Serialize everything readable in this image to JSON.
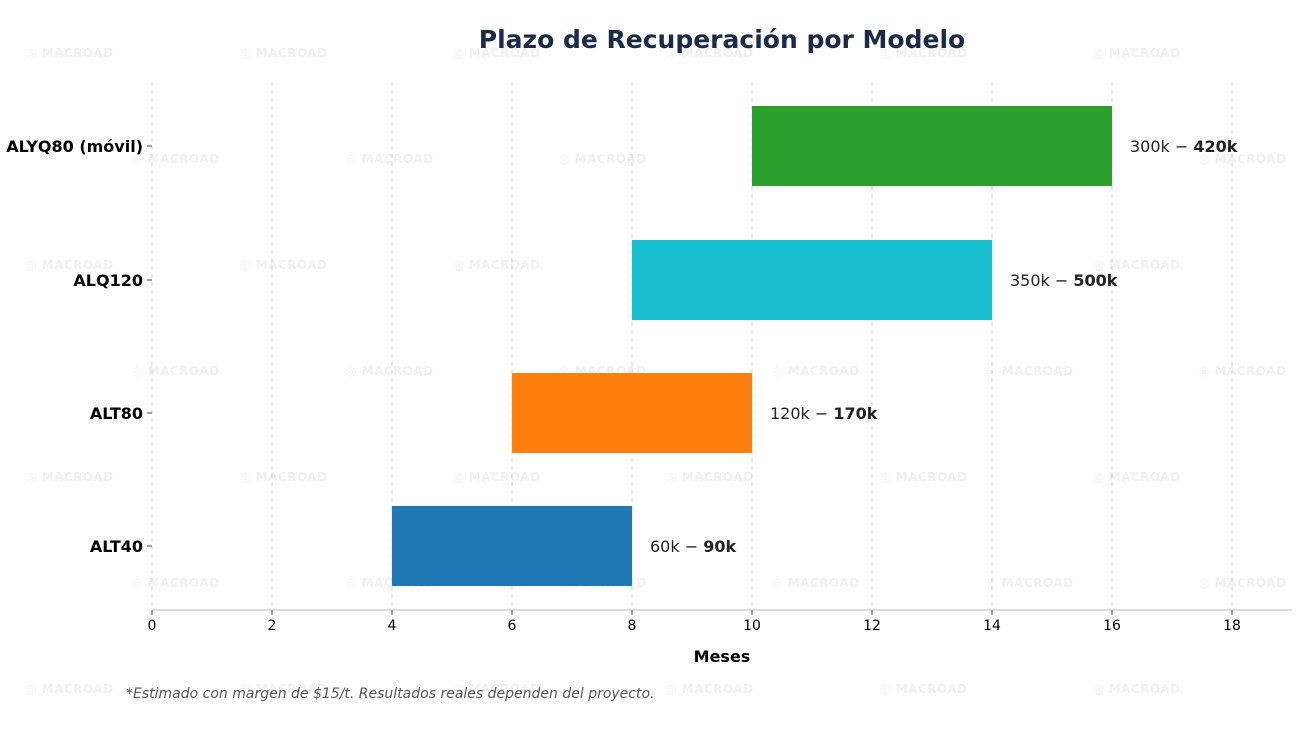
{
  "watermark_text": "MACROAD",
  "footnote": "*Estimado con margen de $15/t. Resultados reales dependen del proyecto.",
  "chart_data": {
    "type": "bar",
    "orientation": "horizontal-range",
    "title": "Plazo de Recuperación por Modelo",
    "xlabel": "Meses",
    "ylabel": "",
    "xlim": [
      0,
      19
    ],
    "xticks": [
      0,
      2,
      4,
      6,
      8,
      10,
      12,
      14,
      16,
      18
    ],
    "grid": "x-dashed",
    "categories": [
      "ALYQ80 (móvil)",
      "ALQ120",
      "ALT80",
      "ALT40"
    ],
    "bars": [
      {
        "category": "ALYQ80 (móvil)",
        "start": 10,
        "end": 16,
        "color": "#2ca02c",
        "label_pre": "300k − ",
        "label_bold": "420k"
      },
      {
        "category": "ALQ120",
        "start": 8,
        "end": 14,
        "color": "#17becf",
        "label_pre": "350k − ",
        "label_bold": "500k"
      },
      {
        "category": "ALT80",
        "start": 6,
        "end": 10,
        "color": "#ff7f0e",
        "label_pre": "120k − ",
        "label_bold": "170k"
      },
      {
        "category": "ALT40",
        "start": 4,
        "end": 8,
        "color": "#1f77b4",
        "label_pre": "60k − ",
        "label_bold": "90k"
      }
    ]
  }
}
